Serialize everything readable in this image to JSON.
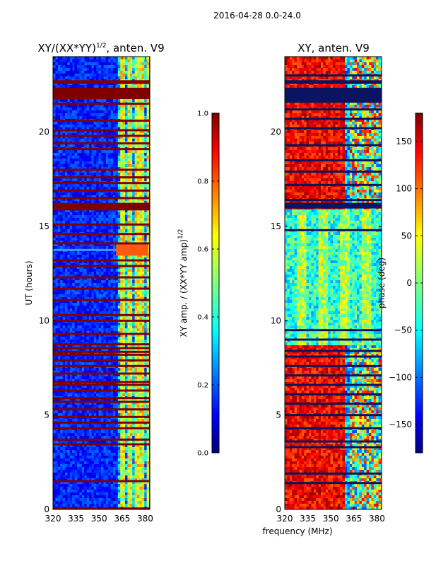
{
  "suptitle": "2016-04-28 0.0-24.0",
  "chart_data": [
    {
      "type": "heatmap",
      "title": "XY/(XX*YY)",
      "title_sup": "1/2",
      "title_suffix": ", anten. V9",
      "xlabel": "",
      "ylabel": "UT (hours)",
      "xlim": [
        320,
        383
      ],
      "ylim": [
        0,
        24
      ],
      "xticks": [
        320,
        335,
        350,
        365,
        380
      ],
      "yticks": [
        0,
        5,
        10,
        15,
        20
      ],
      "bright_channel_freqs": [
        363.5,
        365.5,
        368.5,
        370.5,
        373.5,
        375.5,
        378.5,
        380.5
      ],
      "flagged_hours": [
        0.05,
        1.5,
        3.45,
        3.7,
        4.3,
        4.6,
        4.9,
        5.3,
        5.7,
        5.9,
        6.3,
        6.6,
        6.75,
        7.2,
        7.6,
        7.9,
        8.2,
        8.35,
        8.55,
        8.75,
        9.3,
        10.0,
        10.3,
        11.1,
        11.7,
        12.3,
        12.9,
        13.2,
        14.1,
        14.6,
        15.1,
        16.5,
        16.9,
        17.3,
        17.6,
        18.0,
        19.1,
        19.4,
        19.8,
        20.1,
        20.6,
        21.5,
        22.1
      ],
      "flagged_blocks": [
        [
          15.85,
          16.25
        ],
        [
          21.75,
          22.35
        ],
        [
          22.55,
          22.75
        ]
      ],
      "feature_hours": [
        13.75
      ],
      "colorbar": {
        "label": "XY amp. / (XX*YY amp)",
        "label_sup": "1/2",
        "range": [
          0.0,
          1.0
        ],
        "ticks": [
          "0.0",
          "0.2",
          "0.4",
          "0.6",
          "0.8",
          "1.0"
        ]
      }
    },
    {
      "type": "heatmap",
      "title": "XY, anten. V9",
      "xlabel": "frequency (MHz)",
      "ylabel": "",
      "xlim": [
        320,
        383
      ],
      "ylim": [
        0,
        24
      ],
      "xticks": [
        320,
        335,
        350,
        365,
        380
      ],
      "yticks": [
        0,
        5,
        10,
        15,
        20
      ],
      "flagged_hours": [
        1.4,
        1.9,
        3.3,
        3.6,
        4.3,
        5.0,
        5.6,
        6.1,
        6.6,
        7.1,
        7.6,
        8.1,
        8.4,
        9.0,
        9.5,
        14.8,
        16.4,
        17.2,
        17.9,
        18.5,
        19.3,
        20.2,
        20.7,
        21.2,
        22.2,
        23.0
      ],
      "flagged_blocks": [
        [
          15.95,
          16.25
        ],
        [
          21.55,
          22.35
        ],
        [
          22.55,
          22.75
        ]
      ],
      "colorbar": {
        "label": "phase (deg)",
        "range": [
          -180,
          180
        ],
        "ticks": [
          "150",
          "100",
          "50",
          "0",
          "−50",
          "−100",
          "−150"
        ],
        "tick_values": [
          150,
          100,
          50,
          0,
          -50,
          -100,
          -150
        ]
      }
    }
  ],
  "colors": {
    "flag": "#800000",
    "base_amp": "#0a1a9e",
    "jet_stops": [
      "#00007f",
      "#0000ff",
      "#007fff",
      "#00ffff",
      "#7fff7f",
      "#ffff00",
      "#ff7f00",
      "#ff0000",
      "#7f0000"
    ]
  }
}
